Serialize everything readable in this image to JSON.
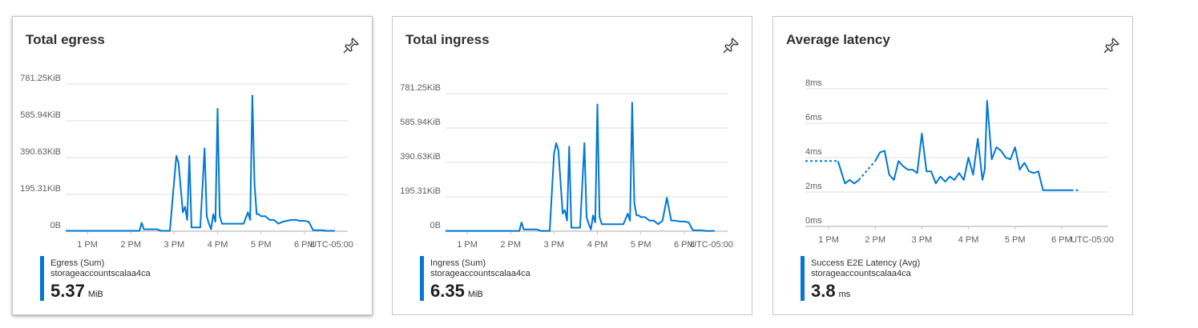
{
  "cards": [
    {
      "title": "Total egress",
      "pin_icon": "pin-icon",
      "legend": {
        "series": "Egress (Sum)",
        "resource": "storageaccountscalaa4ca",
        "value": "5.37",
        "unit": "MiB"
      },
      "accent": "#0078d4"
    },
    {
      "title": "Total ingress",
      "pin_icon": "pin-icon",
      "legend": {
        "series": "Ingress (Sum)",
        "resource": "storageaccountscalaa4ca",
        "value": "6.35",
        "unit": "MiB"
      },
      "accent": "#0078d4"
    },
    {
      "title": "Average latency",
      "pin_icon": "pin-icon",
      "legend": {
        "series": "Success E2E Latency (Avg)",
        "resource": "storageaccountscalaa4ca",
        "value": "3.8",
        "unit": "ms"
      },
      "accent": "#0078d4"
    }
  ],
  "chart_data": [
    {
      "type": "line",
      "title": "Total egress",
      "y_ticks": [
        "0B",
        "195.31KiB",
        "390.63KiB",
        "585.94KiB",
        "781.25KiB"
      ],
      "ylim": [
        0,
        781.25
      ],
      "y_unit": "KiB",
      "x_ticks": [
        "1 PM",
        "2 PM",
        "3 PM",
        "4 PM",
        "5 PM",
        "6 PM",
        "UTC-05:00"
      ],
      "xlim": [
        12.5,
        19.0
      ],
      "grid": true,
      "series": [
        {
          "name": "Egress (Sum)",
          "color": "#0078d4",
          "x": [
            12.5,
            12.6,
            12.7,
            12.8,
            12.9,
            13.0,
            13.1,
            13.2,
            13.3,
            13.4,
            13.5,
            13.6,
            13.7,
            13.8,
            13.9,
            14.0,
            14.1,
            14.2,
            14.25,
            14.3,
            14.4,
            14.5,
            14.6,
            14.7,
            14.8,
            14.9,
            15.0,
            15.05,
            15.1,
            15.2,
            15.25,
            15.3,
            15.35,
            15.4,
            15.45,
            15.5,
            15.6,
            15.7,
            15.75,
            15.8,
            15.85,
            15.9,
            15.95,
            16.0,
            16.05,
            16.1,
            16.15,
            16.2,
            16.3,
            16.4,
            16.5,
            16.6,
            16.7,
            16.75,
            16.8,
            16.85,
            16.9,
            16.95,
            17.0,
            17.1,
            17.2,
            17.3,
            17.4,
            17.5,
            17.6,
            17.7,
            17.8,
            17.9,
            18.0,
            18.1,
            18.2,
            18.3,
            18.4,
            18.5,
            18.6,
            18.7
          ],
          "y": [
            2,
            2,
            2,
            2,
            2,
            2,
            2,
            2,
            2,
            2,
            2,
            2,
            2,
            2,
            2,
            2,
            2,
            2,
            45,
            10,
            10,
            10,
            10,
            2,
            2,
            2,
            270,
            400,
            360,
            100,
            130,
            60,
            400,
            20,
            20,
            20,
            20,
            440,
            80,
            40,
            10,
            90,
            50,
            650,
            80,
            40,
            40,
            40,
            40,
            40,
            40,
            40,
            100,
            60,
            720,
            250,
            90,
            90,
            80,
            80,
            60,
            60,
            40,
            50,
            55,
            60,
            60,
            55,
            55,
            50,
            5,
            5,
            5,
            2,
            2,
            2
          ]
        }
      ]
    },
    {
      "type": "line",
      "title": "Total ingress",
      "y_ticks": [
        "0B",
        "195.31KiB",
        "390.63KiB",
        "585.94KiB",
        "781.25KiB"
      ],
      "ylim": [
        0,
        781.25
      ],
      "y_unit": "KiB",
      "x_ticks": [
        "1 PM",
        "2 PM",
        "3 PM",
        "4 PM",
        "5 PM",
        "6 PM",
        "UTC-05:00"
      ],
      "xlim": [
        12.5,
        19.0
      ],
      "grid": true,
      "series": [
        {
          "name": "Ingress (Sum)",
          "color": "#0078d4",
          "x": [
            12.5,
            12.6,
            12.7,
            12.8,
            12.9,
            13.0,
            13.1,
            13.2,
            13.3,
            13.4,
            13.5,
            13.6,
            13.7,
            13.8,
            13.9,
            14.0,
            14.1,
            14.2,
            14.25,
            14.3,
            14.4,
            14.5,
            14.6,
            14.7,
            14.8,
            14.9,
            15.0,
            15.05,
            15.1,
            15.2,
            15.25,
            15.3,
            15.35,
            15.4,
            15.45,
            15.5,
            15.6,
            15.7,
            15.75,
            15.8,
            15.85,
            15.9,
            15.95,
            16.0,
            16.05,
            16.1,
            16.15,
            16.2,
            16.3,
            16.4,
            16.5,
            16.6,
            16.7,
            16.75,
            16.8,
            16.85,
            16.9,
            16.95,
            17.0,
            17.1,
            17.2,
            17.3,
            17.4,
            17.5,
            17.6,
            17.7,
            17.8,
            17.9,
            18.0,
            18.1,
            18.2,
            18.3,
            18.4,
            18.5,
            18.6,
            18.7
          ],
          "y": [
            2,
            2,
            2,
            2,
            2,
            2,
            2,
            2,
            2,
            2,
            2,
            2,
            2,
            2,
            2,
            2,
            2,
            2,
            50,
            10,
            10,
            10,
            10,
            2,
            2,
            2,
            440,
            500,
            460,
            100,
            120,
            60,
            480,
            20,
            20,
            20,
            20,
            500,
            80,
            40,
            10,
            90,
            50,
            720,
            80,
            40,
            40,
            40,
            40,
            40,
            40,
            40,
            100,
            60,
            730,
            160,
            90,
            90,
            80,
            80,
            60,
            60,
            40,
            60,
            190,
            60,
            60,
            55,
            55,
            50,
            5,
            5,
            5,
            2,
            2,
            2
          ]
        }
      ]
    },
    {
      "type": "line",
      "title": "Average latency",
      "y_ticks": [
        "0ms",
        "2ms",
        "4ms",
        "6ms",
        "8ms"
      ],
      "ylim": [
        0,
        8
      ],
      "y_unit": "ms",
      "x_ticks": [
        "1 PM",
        "2 PM",
        "3 PM",
        "4 PM",
        "5 PM",
        "6 PM",
        "UTC-05:00"
      ],
      "xlim": [
        12.5,
        19.0
      ],
      "grid": true,
      "series": [
        {
          "name": "Success E2E Latency (Avg)",
          "color": "#0078d4",
          "segments": [
            {
              "style": "dashed",
              "x": [
                12.5,
                13.2
              ],
              "y": [
                3.8,
                3.8
              ]
            },
            {
              "style": "solid",
              "x": [
                13.2,
                13.35,
                13.45,
                13.55,
                13.65
              ],
              "y": [
                3.8,
                2.5,
                2.7,
                2.5,
                2.7
              ]
            },
            {
              "style": "dashed",
              "x": [
                13.65,
                14.0
              ],
              "y": [
                2.7,
                3.8
              ]
            },
            {
              "style": "solid",
              "x": [
                14.0,
                14.1,
                14.2,
                14.3,
                14.4,
                14.5,
                14.6,
                14.7,
                14.8,
                14.9,
                15.0,
                15.1,
                15.2,
                15.3,
                15.4,
                15.5,
                15.6,
                15.7,
                15.8,
                15.9,
                16.0,
                16.1,
                16.2,
                16.3,
                16.35,
                16.4,
                16.5,
                16.6,
                16.7,
                16.8,
                16.9,
                17.0,
                17.1,
                17.2,
                17.3,
                17.4,
                17.5,
                17.6,
                17.7,
                17.8,
                17.9,
                18.0,
                18.1,
                18.2
              ],
              "y": [
                3.8,
                4.3,
                4.4,
                3.0,
                2.7,
                3.8,
                3.5,
                3.3,
                3.3,
                3.1,
                5.4,
                3.2,
                3.2,
                2.5,
                2.9,
                2.6,
                2.9,
                2.7,
                3.1,
                2.7,
                4.0,
                3.0,
                5.1,
                2.7,
                3.3,
                7.3,
                3.9,
                4.6,
                4.4,
                4.0,
                3.9,
                4.6,
                3.3,
                3.7,
                3.2,
                3.1,
                3.2,
                2.1,
                2.1,
                2.1,
                2.1,
                2.1,
                2.1,
                2.1
              ]
            },
            {
              "style": "dashed",
              "x": [
                18.2,
                18.4
              ],
              "y": [
                2.1,
                2.1
              ]
            }
          ]
        }
      ]
    }
  ]
}
